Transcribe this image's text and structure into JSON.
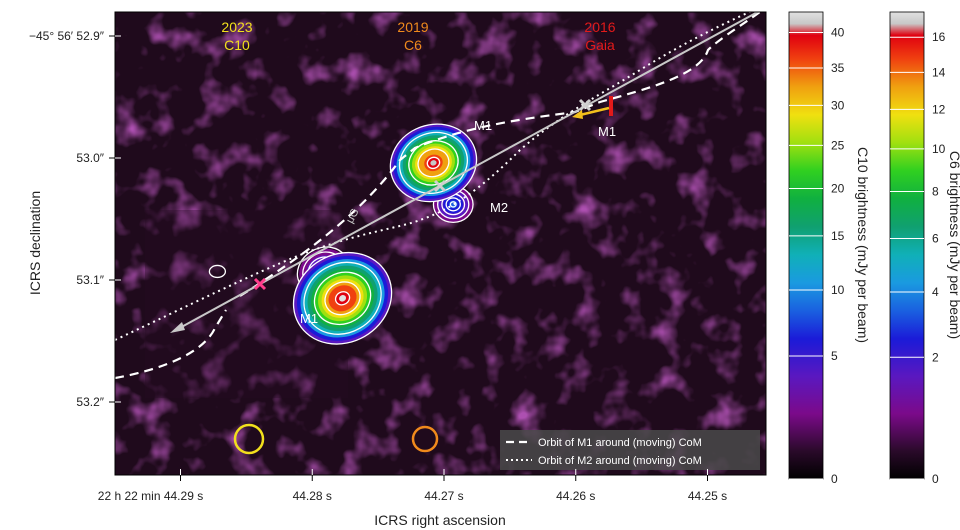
{
  "chart_data": {
    "type": "heatmap",
    "xlabel": "ICRS right ascension",
    "ylabel": "ICRS declination",
    "x_ticks": [
      "22 h 22 min 44.29 s",
      "44.28 s",
      "44.27 s",
      "44.26 s",
      "44.25 s"
    ],
    "y_ticks": [
      "−45° 56′ 52.9″",
      "53.0″",
      "53.1″",
      "53.2″"
    ],
    "epochs": [
      {
        "year": "2023",
        "instrument": "C10",
        "color": "#f2e01c"
      },
      {
        "year": "2019",
        "instrument": "C6",
        "color": "#f08a1c"
      },
      {
        "year": "2016",
        "instrument": "Gaia",
        "color": "#e21a1a"
      }
    ],
    "annotations": {
      "m1_upper": "M1",
      "m2_label": "M2",
      "m1_gaia": "M1",
      "m1_c10": "M1",
      "mu_g": "μG"
    },
    "legend": {
      "placement": "bottom-right",
      "items": [
        {
          "label": "Orbit of M1 around (moving) CoM",
          "style": "dashed"
        },
        {
          "label": "Orbit of M2 around (moving) CoM",
          "style": "dotted"
        }
      ]
    },
    "colorbars": [
      {
        "label": "C10 brightness (mJy per beam)",
        "ticks": [
          0,
          5,
          10,
          15,
          20,
          25,
          30,
          35,
          40
        ],
        "range": [
          0,
          43
        ]
      },
      {
        "label": "C6 brightness (mJy per beam)",
        "ticks": [
          0,
          2,
          4,
          6,
          8,
          10,
          12,
          14,
          16
        ],
        "range": [
          0,
          17.5
        ]
      }
    ],
    "sources": [
      {
        "epoch": "2023",
        "component": "M1",
        "ra_s": 44.2777,
        "dec_arcsec": 53.115,
        "peak_mJy": 42
      },
      {
        "epoch": "2023",
        "component": "M2",
        "ra_s": 44.2792,
        "dec_arcsec": 53.092,
        "peak_mJy": 5
      },
      {
        "epoch": "2019",
        "component": "M1",
        "ra_s": 44.2708,
        "dec_arcsec": 53.004,
        "peak_mJy": 16.5
      },
      {
        "epoch": "2019",
        "component": "M2",
        "ra_s": 44.2693,
        "dec_arcsec": 53.038,
        "peak_mJy": 3
      }
    ],
    "colors": {
      "background": "#1f0a1c",
      "path_line": "#c8c8c8",
      "com_marker": "#d0d0d0",
      "c10_com_marker": "#ff3d8c"
    }
  }
}
